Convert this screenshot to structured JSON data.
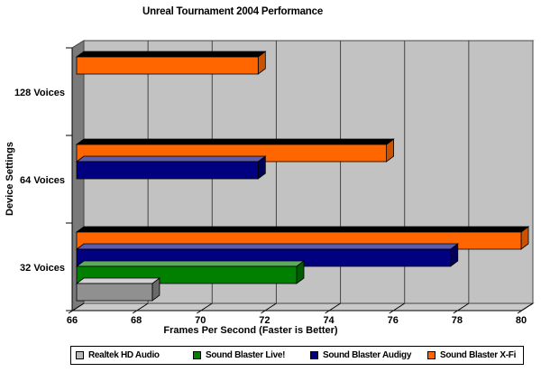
{
  "window": {
    "background": "#ffffff"
  },
  "chart_data": {
    "type": "bar",
    "orientation": "horizontal",
    "style": "3d",
    "title": "Unreal Tournament 2004 Performance",
    "xlabel": "Frames Per Second (Faster is Better)",
    "ylabel": "Device Settings",
    "xlim": [
      66,
      80
    ],
    "x_ticks": [
      66,
      68,
      70,
      72,
      74,
      76,
      78,
      80
    ],
    "grid": true,
    "legend_position": "bottom",
    "categories": [
      "128 Voices",
      "64 Voices",
      "32 Voices"
    ],
    "series": [
      {
        "name": "Realtek HD Audio",
        "color_front": "#909090",
        "color_top": "#d2d2d2",
        "color_end": "#6a6a6a",
        "legend_color": "#b8b8b8",
        "values": [
          null,
          null,
          68.5
        ]
      },
      {
        "name": "Sound Blaster Live!",
        "color_front": "#007f00",
        "color_top": "#5cab5c",
        "color_end": "#005c00",
        "legend_color": "#007f00",
        "values": [
          null,
          null,
          73.0
        ]
      },
      {
        "name": "Sound Blaster Audigy",
        "color_front": "#000080",
        "color_top": "#5c5cab",
        "color_end": "#00005c",
        "legend_color": "#000080",
        "values": [
          null,
          71.8,
          77.8
        ]
      },
      {
        "name": "Sound Blaster X-Fi",
        "color_front": "#ff6600",
        "color_top": "#ff9а4d",
        "color_end": "#cc5200",
        "values_note": "fps",
        "legend_color": "#ff6600",
        "values": [
          71.8,
          75.8,
          80.0
        ]
      }
    ],
    "frame_colors": {
      "back_wall": "#c2c2c2",
      "left_wall": "#7a7a7a",
      "floor": "#cacaca",
      "top_face": "#d8d8d8",
      "gridline": "#454545",
      "axis_line": "#000000"
    }
  }
}
